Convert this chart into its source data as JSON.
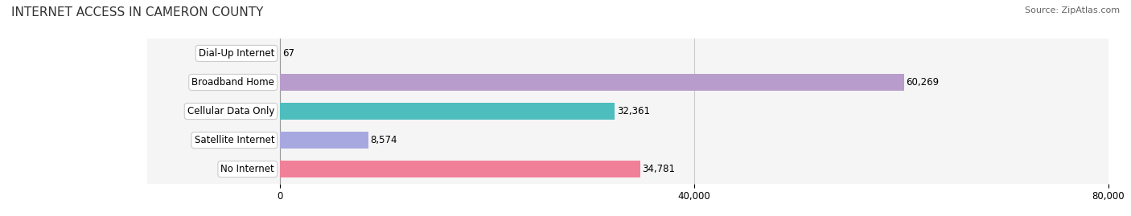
{
  "title": "INTERNET ACCESS IN CAMERON COUNTY",
  "source": "Source: ZipAtlas.com",
  "categories": [
    "Dial-Up Internet",
    "Broadband Home",
    "Cellular Data Only",
    "Satellite Internet",
    "No Internet"
  ],
  "values": [
    67,
    60269,
    32361,
    8574,
    34781
  ],
  "bar_colors": [
    "#a8c8e8",
    "#b89ccc",
    "#4dbdbd",
    "#a8a8e0",
    "#f08098"
  ],
  "row_bg_colors": [
    "#f0f0f0",
    "#f0f0f0",
    "#f0f0f0",
    "#f0f0f0",
    "#f0f0f0"
  ],
  "xlim": [
    0,
    80000
  ],
  "xticks": [
    0,
    40000,
    80000
  ],
  "xtick_labels": [
    "0",
    "40,000",
    "80,000"
  ],
  "background_color": "#ffffff",
  "bar_height": 0.6,
  "title_fontsize": 11,
  "label_fontsize": 8.5,
  "value_fontsize": 8.5
}
